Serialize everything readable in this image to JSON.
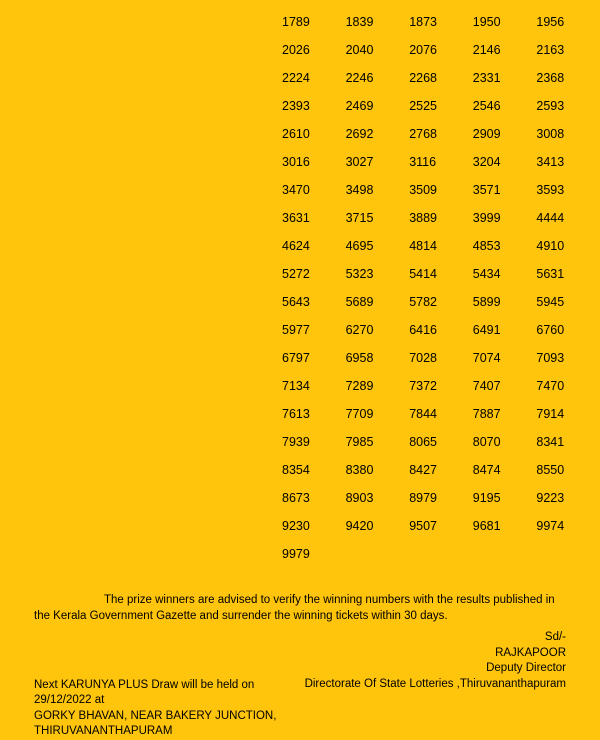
{
  "numbers": {
    "rows": [
      [
        "1789",
        "1839",
        "1873",
        "1950",
        "1956"
      ],
      [
        "2026",
        "2040",
        "2076",
        "2146",
        "2163"
      ],
      [
        "2224",
        "2246",
        "2268",
        "2331",
        "2368"
      ],
      [
        "2393",
        "2469",
        "2525",
        "2546",
        "2593"
      ],
      [
        "2610",
        "2692",
        "2768",
        "2909",
        "3008"
      ],
      [
        "3016",
        "3027",
        "3116",
        "3204",
        "3413"
      ],
      [
        "3470",
        "3498",
        "3509",
        "3571",
        "3593"
      ],
      [
        "3631",
        "3715",
        "3889",
        "3999",
        "4444"
      ],
      [
        "4624",
        "4695",
        "4814",
        "4853",
        "4910"
      ],
      [
        "5272",
        "5323",
        "5414",
        "5434",
        "5631"
      ],
      [
        "5643",
        "5689",
        "5782",
        "5899",
        "5945"
      ],
      [
        "5977",
        "6270",
        "6416",
        "6491",
        "6760"
      ],
      [
        "6797",
        "6958",
        "7028",
        "7074",
        "7093"
      ],
      [
        "7134",
        "7289",
        "7372",
        "7407",
        "7470"
      ],
      [
        "7613",
        "7709",
        "7844",
        "7887",
        "7914"
      ],
      [
        "7939",
        "7985",
        "8065",
        "8070",
        "8341"
      ],
      [
        "8354",
        "8380",
        "8427",
        "8474",
        "8550"
      ],
      [
        "8673",
        "8903",
        "8979",
        "9195",
        "9223"
      ],
      [
        "9230",
        "9420",
        "9507",
        "9681",
        "9974"
      ],
      [
        "9979",
        "",
        "",
        "",
        ""
      ]
    ]
  },
  "notice": {
    "text": "The prize winners are advised to verify the winning numbers with the results published in the Kerala Government Gazette and surrender the winning tickets within 30 days."
  },
  "signature": {
    "sd": "Sd/-",
    "name": "RAJKAPOOR",
    "title": "Deputy Director"
  },
  "directorate": "Directorate Of State Lotteries ,Thiruvananthapuram",
  "next_draw": {
    "line1": "Next KARUNYA PLUS Draw will be held on 29/12/2022 at",
    "line2": "GORKY BHAVAN,  NEAR BAKERY JUNCTION,",
    "line3": "THIRUVANANTHAPURAM"
  },
  "colors": {
    "background": "#ffc40c",
    "text": "#000000"
  }
}
